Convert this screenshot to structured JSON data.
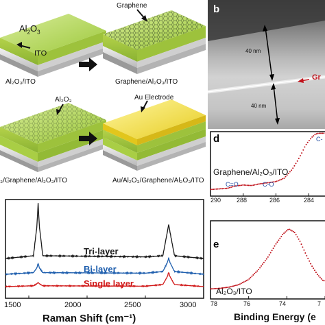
{
  "panel_a": {
    "top_left_label_main": "Al",
    "top_left_label_sub": "2",
    "top_left_label_tail": "O",
    "top_left_label_sub2": "3",
    "ito_label": "ITO",
    "caption_1": "Al₂O₃/ITO",
    "graphene_label": "Graphene",
    "caption_2": "Graphene/Al₂O₃/ITO",
    "al2o3_label": "Al₂O₃",
    "caption_3": "₃/Graphene/Al₂O₃/ITO",
    "au_label": "Au Electrode",
    "caption_4": "Au/Al₂O₃/Graphene/Al₂O₃/ITO"
  },
  "panel_b": {
    "letter": "b",
    "scale_1": "40 nm",
    "scale_2": "40 nm",
    "gr_label": "Gr"
  },
  "panel_d": {
    "letter": "d",
    "sample": "Graphene/Al₂O₃/ITO",
    "peak_1": "C=O",
    "peak_2": "C-O",
    "peak_3": "C-",
    "ticks": [
      "290",
      "288",
      "286",
      "284"
    ]
  },
  "panel_e": {
    "letter": "e",
    "sample": "Al₂O₃/ITO",
    "xlabel": "Binding Energy (e",
    "ticks": [
      "78",
      "76",
      "74",
      "7"
    ]
  },
  "panel_c": {
    "xlabel": "Raman Shift (cm⁻¹)",
    "ticks": [
      "1500",
      "2000",
      "2500",
      "3000"
    ],
    "legend": [
      "Tri-layer",
      "Bi-layer",
      "Single layer"
    ],
    "colors": [
      "#1a1a1a",
      "#1f5fae",
      "#d11a1a"
    ]
  },
  "chart_data": [
    {
      "type": "line",
      "xlabel": "Raman Shift (cm⁻¹)",
      "ylabel": "",
      "xlim": [
        1300,
        3000
      ],
      "series": [
        {
          "name": "Tri-layer",
          "color": "#1a1a1a",
          "x": [
            1300,
            1540,
            1570,
            1580,
            1590,
            1620,
            2500,
            2650,
            2690,
            2700,
            2710,
            2750,
            3000
          ],
          "y": [
            0,
            0.05,
            0.6,
            1.0,
            0.6,
            0.05,
            0.03,
            0.05,
            0.5,
            0.62,
            0.5,
            0.05,
            0
          ]
        },
        {
          "name": "Bi-layer",
          "color": "#1f5fae",
          "x": [
            1300,
            1540,
            1570,
            1580,
            1590,
            1620,
            2500,
            2650,
            2690,
            2700,
            2710,
            2750,
            3000
          ],
          "y": [
            0,
            0.03,
            0.12,
            0.2,
            0.12,
            0.03,
            0.02,
            0.05,
            0.22,
            0.3,
            0.22,
            0.05,
            0
          ]
        },
        {
          "name": "Single layer",
          "color": "#d11a1a",
          "x": [
            1300,
            1540,
            1570,
            1580,
            1590,
            1620,
            2500,
            2650,
            2690,
            2700,
            2710,
            2750,
            3000
          ],
          "y": [
            0,
            0.02,
            0.07,
            0.1,
            0.07,
            0.02,
            0.01,
            0.05,
            0.25,
            0.35,
            0.25,
            0.05,
            0
          ]
        }
      ]
    },
    {
      "type": "scatter",
      "xlabel": "",
      "xlim": [
        290,
        283
      ],
      "series": [
        {
          "name": "Graphene/Al₂O₃/ITO",
          "color": "#c0121b",
          "x": [
            290,
            289.5,
            289,
            288.5,
            288,
            287.5,
            287,
            286.5,
            286,
            285.5,
            285,
            284.7,
            284.4,
            284.2,
            284,
            283.8,
            283.6,
            283.4
          ],
          "y": [
            0.02,
            0.03,
            0.04,
            0.08,
            0.1,
            0.09,
            0.12,
            0.14,
            0.16,
            0.22,
            0.38,
            0.52,
            0.68,
            0.8,
            0.88,
            0.95,
            1.0,
            1.02
          ]
        }
      ]
    },
    {
      "type": "scatter",
      "xlabel": "Binding Energy (e",
      "xlim": [
        78,
        72
      ],
      "series": [
        {
          "name": "Al₂O₃/ITO",
          "color": "#c0121b",
          "x": [
            78,
            77.5,
            77,
            76.5,
            76,
            75.5,
            75,
            74.6,
            74.2,
            73.9,
            73.6,
            73.3,
            73,
            72.7,
            72.4,
            72.1
          ],
          "y": [
            0.05,
            0.06,
            0.08,
            0.12,
            0.2,
            0.35,
            0.55,
            0.75,
            0.92,
            1.0,
            0.95,
            0.8,
            0.6,
            0.42,
            0.28,
            0.18
          ]
        }
      ]
    }
  ]
}
